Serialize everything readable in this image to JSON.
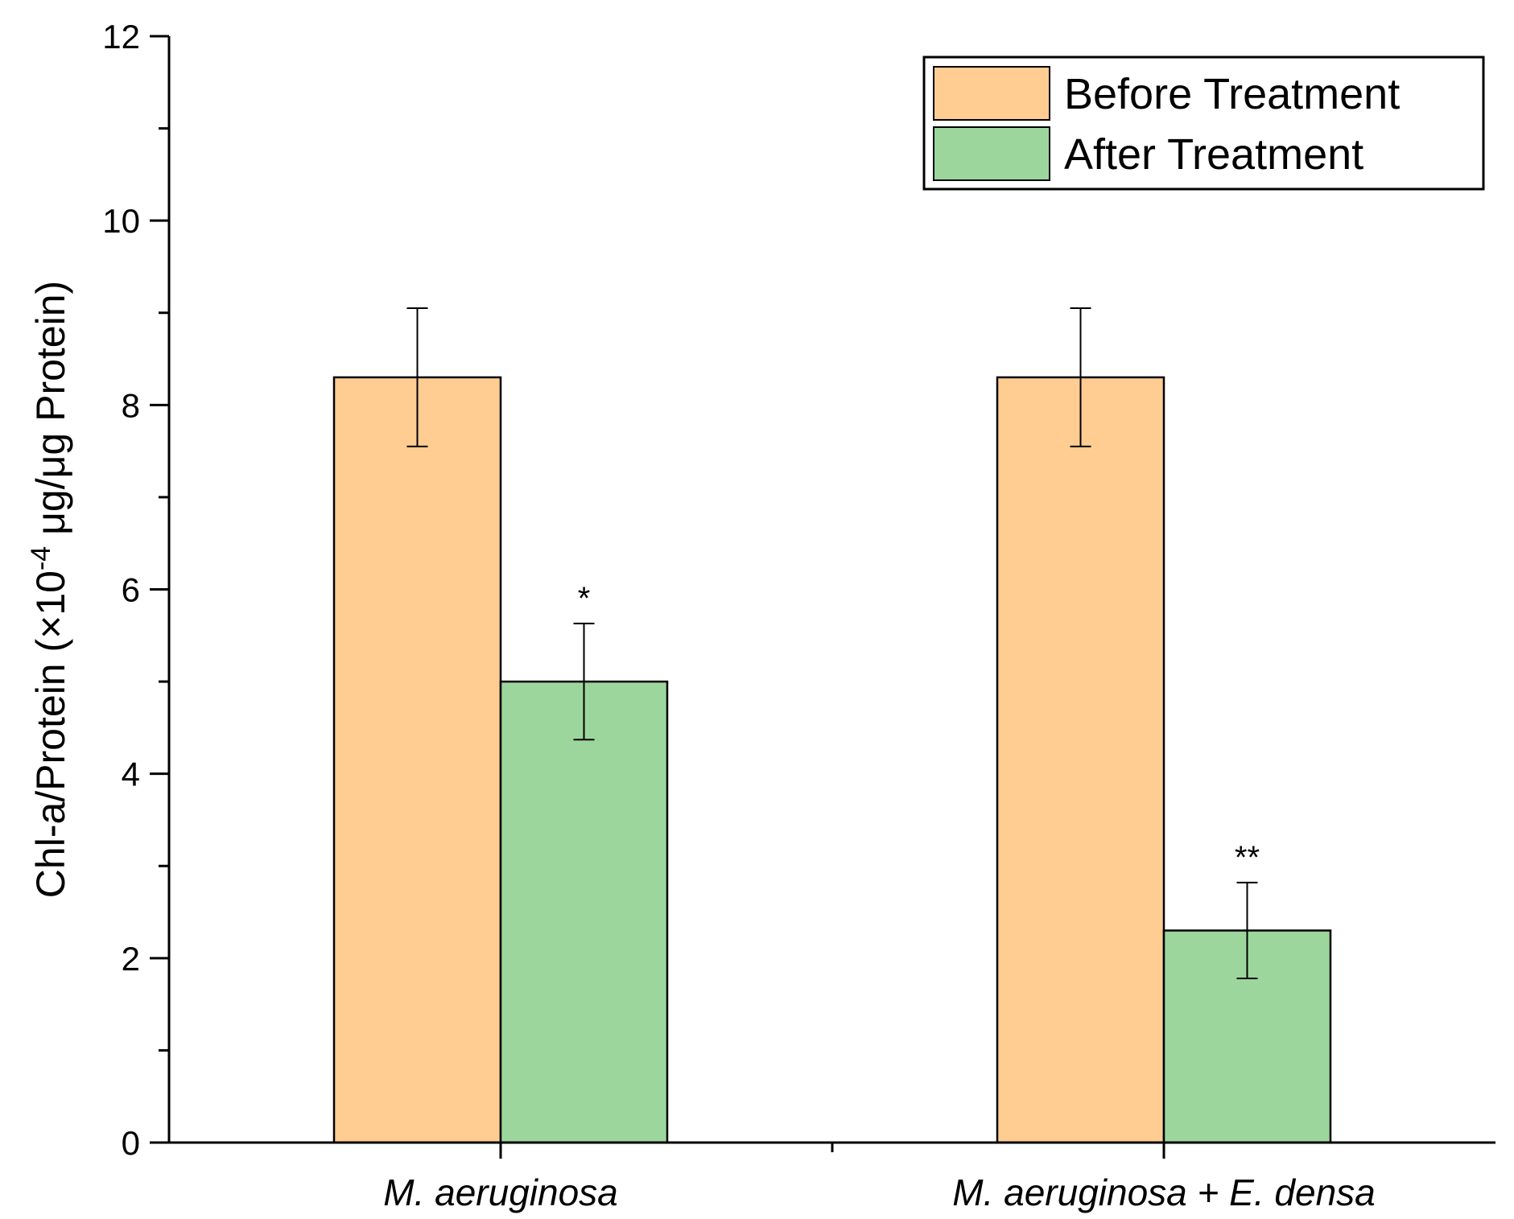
{
  "chart_data": {
    "type": "bar",
    "title": "",
    "xlabel": "",
    "ylabel": {
      "prefix": "Chl-a/Protein (×10",
      "superscript": "-4",
      "suffix": " μg/μg Protein)"
    },
    "ylim": [
      0,
      12
    ],
    "yticks": [
      0,
      2,
      4,
      6,
      8,
      10,
      12
    ],
    "categories": [
      "M. aeruginosa",
      "M. aeruginosa + E. densa"
    ],
    "series": [
      {
        "name": "Before Treatment",
        "color": "#FFCC92",
        "values": [
          8.3,
          8.3
        ],
        "errors": [
          0.75,
          0.75
        ],
        "annotations": [
          "",
          ""
        ]
      },
      {
        "name": "After Treatment",
        "color": "#9CD69C",
        "values": [
          5.0,
          2.3
        ],
        "errors": [
          0.63,
          0.52
        ],
        "annotations": [
          "*",
          "**"
        ]
      }
    ],
    "legend_position": "top-right"
  }
}
